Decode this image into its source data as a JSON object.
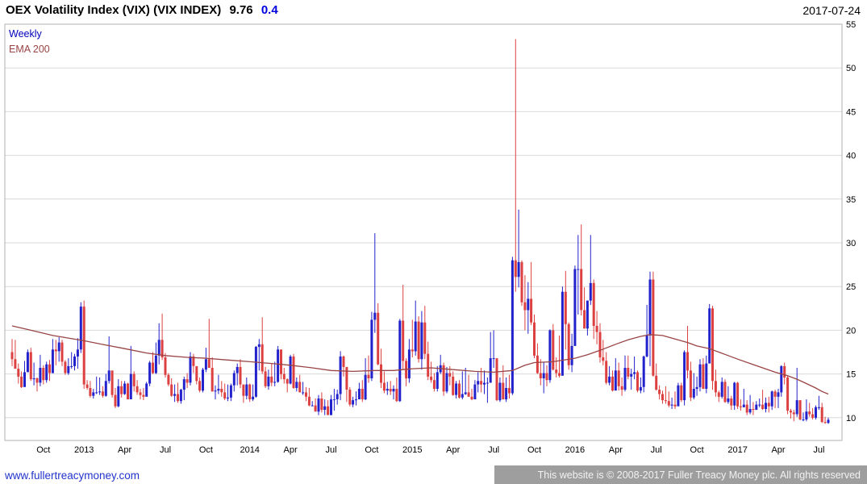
{
  "header": {
    "title": "OEX Volatility Index (VIX) (VIX INDEX)",
    "price": "9.76",
    "change": "0.4",
    "date": "2017-07-24"
  },
  "legend": {
    "timeframe": "Weekly",
    "overlay": "EMA 200"
  },
  "footer": {
    "link": "www.fullertreacymoney.com",
    "copyright": "This website is © 2008-2017 Fuller Treacy Money plc. All rights reserved"
  },
  "colors": {
    "up": "#2222cc",
    "down": "#dd4040",
    "ema": "#994444",
    "grid": "#d9d9d9",
    "border": "#b0b0b0",
    "axis_text": "#000000"
  },
  "chart_data": {
    "type": "candlestick",
    "title": "OEX Volatility Index (VIX) (VIX INDEX)",
    "timeframe": "Weekly",
    "overlay": "EMA 200",
    "last_price": 9.76,
    "change": 0.4,
    "as_of": "2017-07-24",
    "y_ticks": [
      10,
      15,
      20,
      25,
      30,
      35,
      40,
      45,
      50,
      55
    ],
    "y_range": [
      7.4,
      55.0
    ],
    "start_week": "2012-07-23",
    "x_ticks": [
      {
        "label": "Oct",
        "week": 10
      },
      {
        "label": "2013",
        "week": 23
      },
      {
        "label": "Apr",
        "week": 36
      },
      {
        "label": "Jul",
        "week": 49
      },
      {
        "label": "Oct",
        "week": 62
      },
      {
        "label": "2014",
        "week": 76
      },
      {
        "label": "Apr",
        "week": 89
      },
      {
        "label": "Jul",
        "week": 102
      },
      {
        "label": "Oct",
        "week": 115
      },
      {
        "label": "2015",
        "week": 128
      },
      {
        "label": "Apr",
        "week": 141
      },
      {
        "label": "Jul",
        "week": 154
      },
      {
        "label": "Oct",
        "week": 167
      },
      {
        "label": "2016",
        "week": 180
      },
      {
        "label": "Apr",
        "week": 193
      },
      {
        "label": "Jul",
        "week": 206
      },
      {
        "label": "Oct",
        "week": 219
      },
      {
        "label": "2017",
        "week": 232
      },
      {
        "label": "Apr",
        "week": 245
      },
      {
        "label": "Jul",
        "week": 258
      }
    ],
    "first_open": 17.5,
    "weeks_hlc": [
      [
        19.0,
        15.9,
        16.7
      ],
      [
        18.9,
        15.6,
        15.6
      ],
      [
        16.2,
        13.9,
        14.7
      ],
      [
        15.3,
        13.4,
        13.5
      ],
      [
        16.5,
        13.8,
        15.2
      ],
      [
        17.8,
        15.4,
        17.5
      ],
      [
        18.0,
        14.2,
        14.4
      ],
      [
        16.3,
        13.7,
        14.5
      ],
      [
        14.6,
        13.0,
        14.0
      ],
      [
        17.2,
        13.6,
        15.7
      ],
      [
        16.0,
        13.8,
        14.3
      ],
      [
        16.4,
        14.0,
        16.1
      ],
      [
        16.6,
        14.2,
        15.1
      ],
      [
        19.0,
        15.1,
        17.8
      ],
      [
        18.9,
        16.0,
        17.6
      ],
      [
        19.2,
        16.4,
        18.6
      ],
      [
        18.9,
        15.9,
        16.4
      ],
      [
        16.6,
        14.9,
        15.1
      ],
      [
        16.8,
        14.9,
        15.9
      ],
      [
        17.5,
        15.6,
        15.9
      ],
      [
        17.3,
        15.4,
        17.0
      ],
      [
        19.1,
        15.6,
        17.8
      ],
      [
        23.2,
        17.4,
        22.7
      ],
      [
        23.4,
        13.3,
        13.8
      ],
      [
        14.3,
        13.2,
        13.4
      ],
      [
        14.2,
        12.3,
        12.5
      ],
      [
        13.3,
        12.2,
        12.9
      ],
      [
        14.7,
        12.7,
        12.9
      ],
      [
        14.6,
        12.6,
        13.0
      ],
      [
        13.6,
        12.3,
        12.5
      ],
      [
        15.0,
        12.4,
        14.2
      ],
      [
        19.3,
        13.9,
        15.4
      ],
      [
        14.4,
        12.3,
        12.6
      ],
      [
        13.4,
        11.1,
        11.3
      ],
      [
        14.4,
        11.2,
        13.6
      ],
      [
        14.2,
        12.3,
        12.7
      ],
      [
        14.2,
        12.6,
        13.9
      ],
      [
        14.0,
        12.1,
        12.1
      ],
      [
        18.2,
        12.4,
        15.0
      ],
      [
        15.3,
        13.0,
        13.6
      ],
      [
        14.3,
        12.6,
        12.9
      ],
      [
        13.3,
        12.1,
        12.6
      ],
      [
        13.4,
        12.0,
        12.4
      ],
      [
        14.1,
        12.6,
        13.9
      ],
      [
        16.5,
        13.6,
        16.3
      ],
      [
        17.5,
        15.0,
        15.1
      ],
      [
        18.6,
        15.0,
        17.1
      ],
      [
        20.8,
        16.1,
        18.9
      ],
      [
        21.9,
        16.6,
        16.9
      ],
      [
        17.4,
        14.6,
        14.9
      ],
      [
        15.1,
        13.6,
        13.8
      ],
      [
        14.5,
        12.4,
        12.5
      ],
      [
        13.8,
        11.8,
        12.7
      ],
      [
        14.0,
        11.7,
        11.9
      ],
      [
        13.3,
        11.6,
        13.2
      ],
      [
        14.7,
        12.0,
        14.4
      ],
      [
        15.1,
        13.4,
        14.0
      ],
      [
        17.5,
        13.7,
        17.0
      ],
      [
        17.3,
        15.1,
        15.9
      ],
      [
        15.9,
        13.8,
        14.2
      ],
      [
        14.6,
        12.9,
        13.1
      ],
      [
        15.7,
        12.9,
        15.5
      ],
      [
        18.0,
        15.2,
        16.7
      ],
      [
        21.3,
        15.7,
        15.7
      ],
      [
        16.9,
        13.0,
        13.0
      ],
      [
        13.7,
        12.1,
        13.1
      ],
      [
        14.9,
        12.7,
        13.3
      ],
      [
        14.2,
        12.4,
        12.9
      ],
      [
        13.9,
        12.0,
        12.2
      ],
      [
        13.8,
        11.9,
        12.3
      ],
      [
        13.9,
        11.9,
        13.7
      ],
      [
        15.4,
        13.0,
        15.1
      ],
      [
        16.2,
        13.7,
        15.8
      ],
      [
        16.7,
        13.4,
        13.8
      ],
      [
        13.6,
        11.7,
        12.5
      ],
      [
        14.6,
        12.1,
        13.8
      ],
      [
        13.9,
        11.8,
        12.1
      ],
      [
        13.8,
        11.9,
        12.4
      ],
      [
        18.2,
        12.3,
        18.1
      ],
      [
        19.0,
        15.4,
        18.4
      ],
      [
        21.5,
        15.0,
        15.3
      ],
      [
        15.8,
        13.4,
        13.6
      ],
      [
        15.5,
        13.2,
        14.7
      ],
      [
        16.2,
        13.6,
        14.0
      ],
      [
        16.4,
        13.6,
        14.1
      ],
      [
        18.2,
        14.0,
        17.8
      ],
      [
        17.8,
        14.4,
        15.0
      ],
      [
        15.7,
        13.9,
        14.4
      ],
      [
        14.5,
        12.9,
        13.9
      ],
      [
        17.2,
        13.8,
        17.0
      ],
      [
        17.3,
        13.3,
        13.4
      ],
      [
        14.6,
        13.0,
        14.1
      ],
      [
        14.9,
        12.9,
        12.9
      ],
      [
        14.1,
        12.6,
        12.9
      ],
      [
        13.5,
        11.9,
        12.4
      ],
      [
        13.4,
        11.3,
        11.4
      ],
      [
        11.9,
        11.3,
        11.4
      ],
      [
        12.2,
        10.7,
        10.7
      ],
      [
        12.6,
        10.3,
        12.2
      ],
      [
        12.9,
        10.6,
        10.9
      ],
      [
        12.1,
        10.3,
        11.3
      ],
      [
        12.0,
        10.3,
        10.3
      ],
      [
        12.6,
        10.3,
        12.1
      ],
      [
        13.3,
        10.8,
        12.1
      ],
      [
        13.2,
        11.5,
        12.7
      ],
      [
        17.6,
        12.0,
        17.0
      ],
      [
        17.1,
        14.7,
        15.8
      ],
      [
        14.9,
        11.8,
        13.2
      ],
      [
        13.5,
        11.3,
        11.5
      ],
      [
        12.4,
        11.2,
        12.0
      ],
      [
        13.0,
        11.4,
        12.1
      ],
      [
        14.0,
        12.1,
        13.3
      ],
      [
        14.3,
        11.8,
        12.1
      ],
      [
        16.8,
        12.0,
        14.9
      ],
      [
        17.1,
        14.0,
        14.5
      ],
      [
        22.1,
        14.2,
        21.2
      ],
      [
        31.1,
        19.7,
        22.0
      ],
      [
        23.1,
        16.0,
        16.1
      ],
      [
        17.9,
        13.4,
        14.0
      ],
      [
        15.3,
        12.8,
        13.1
      ],
      [
        14.1,
        12.6,
        13.3
      ],
      [
        14.2,
        12.6,
        13.0
      ],
      [
        13.7,
        12.1,
        13.3
      ],
      [
        14.6,
        11.8,
        11.9
      ],
      [
        21.3,
        11.8,
        21.1
      ],
      [
        25.2,
        15.5,
        16.5
      ],
      [
        16.8,
        13.6,
        14.5
      ],
      [
        19.0,
        14.0,
        17.8
      ],
      [
        21.2,
        16.9,
        17.6
      ],
      [
        23.4,
        17.1,
        21.0
      ],
      [
        21.6,
        16.3,
        16.7
      ],
      [
        22.2,
        15.5,
        20.9
      ],
      [
        22.8,
        16.7,
        17.3
      ],
      [
        18.7,
        14.3,
        14.7
      ],
      [
        16.4,
        14.0,
        14.3
      ],
      [
        15.1,
        13.0,
        13.3
      ],
      [
        15.9,
        13.0,
        15.2
      ],
      [
        17.2,
        15.0,
        16.0
      ],
      [
        16.3,
        12.5,
        13.0
      ],
      [
        15.8,
        12.8,
        15.1
      ],
      [
        15.9,
        13.7,
        14.7
      ],
      [
        15.3,
        12.5,
        12.6
      ],
      [
        14.2,
        12.2,
        13.9
      ],
      [
        14.3,
        12.2,
        12.3
      ],
      [
        15.3,
        12.1,
        12.7
      ],
      [
        15.7,
        12.6,
        12.9
      ],
      [
        14.9,
        12.4,
        12.4
      ],
      [
        13.3,
        12.0,
        12.1
      ],
      [
        14.3,
        12.1,
        13.8
      ],
      [
        15.2,
        12.9,
        14.2
      ],
      [
        15.7,
        12.9,
        13.8
      ],
      [
        15.4,
        12.7,
        14.0
      ],
      [
        14.6,
        11.7,
        14.0
      ],
      [
        19.8,
        14.0,
        16.8
      ],
      [
        20.0,
        15.7,
        16.8
      ],
      [
        15.0,
        11.9,
        12.0
      ],
      [
        14.6,
        11.8,
        14.0
      ],
      [
        16.0,
        12.1,
        12.1
      ],
      [
        14.6,
        11.8,
        13.4
      ],
      [
        14.9,
        12.2,
        12.8
      ],
      [
        28.4,
        12.6,
        28.0
      ],
      [
        53.3,
        24.4,
        26.1
      ],
      [
        33.8,
        24.9,
        27.8
      ],
      [
        28.0,
        22.8,
        23.2
      ],
      [
        26.3,
        20.0,
        22.3
      ],
      [
        25.5,
        19.6,
        23.6
      ],
      [
        27.8,
        20.6,
        20.9
      ],
      [
        21.8,
        16.8,
        17.1
      ],
      [
        18.5,
        15.0,
        15.1
      ],
      [
        16.7,
        13.7,
        14.5
      ],
      [
        16.4,
        12.8,
        15.1
      ],
      [
        16.0,
        13.6,
        14.3
      ],
      [
        20.1,
        14.0,
        20.0
      ],
      [
        20.7,
        15.4,
        15.5
      ],
      [
        16.9,
        14.6,
        15.1
      ],
      [
        19.4,
        14.6,
        14.8
      ],
      [
        25.0,
        15.3,
        24.4
      ],
      [
        26.8,
        17.8,
        20.7
      ],
      [
        20.9,
        15.5,
        16.0
      ],
      [
        19.6,
        15.2,
        18.2
      ],
      [
        27.4,
        19.3,
        27.0
      ],
      [
        30.9,
        21.8,
        27.0
      ],
      [
        32.1,
        21.7,
        22.3
      ],
      [
        24.9,
        20.2,
        20.2
      ],
      [
        23.4,
        19.4,
        23.4
      ],
      [
        30.9,
        22.9,
        25.4
      ],
      [
        25.8,
        19.0,
        20.5
      ],
      [
        22.2,
        18.4,
        19.8
      ],
      [
        20.8,
        16.3,
        16.9
      ],
      [
        18.9,
        16.0,
        16.5
      ],
      [
        17.5,
        13.8,
        14.0
      ],
      [
        15.9,
        13.7,
        14.7
      ],
      [
        15.4,
        13.0,
        13.1
      ],
      [
        16.8,
        13.2,
        15.4
      ],
      [
        16.3,
        13.1,
        13.6
      ],
      [
        14.6,
        12.5,
        13.2
      ],
      [
        17.1,
        13.0,
        15.7
      ],
      [
        17.1,
        14.4,
        14.7
      ],
      [
        15.6,
        13.2,
        15.0
      ],
      [
        17.0,
        14.4,
        15.2
      ],
      [
        15.4,
        12.9,
        13.1
      ],
      [
        14.6,
        12.8,
        13.5
      ],
      [
        17.1,
        12.9,
        17.0
      ],
      [
        22.9,
        16.9,
        19.4
      ],
      [
        26.7,
        15.9,
        25.8
      ],
      [
        26.7,
        14.7,
        14.8
      ],
      [
        16.2,
        13.1,
        13.2
      ],
      [
        13.7,
        12.1,
        12.7
      ],
      [
        13.1,
        11.6,
        12.0
      ],
      [
        13.6,
        11.6,
        11.9
      ],
      [
        13.0,
        11.2,
        11.4
      ],
      [
        12.3,
        11.0,
        11.5
      ],
      [
        13.0,
        11.0,
        11.3
      ],
      [
        14.0,
        11.5,
        13.7
      ],
      [
        14.0,
        11.8,
        12.0
      ],
      [
        17.7,
        11.4,
        17.5
      ],
      [
        20.5,
        14.5,
        15.4
      ],
      [
        16.4,
        11.9,
        12.3
      ],
      [
        15.1,
        12.1,
        13.3
      ],
      [
        14.7,
        12.5,
        13.5
      ],
      [
        16.7,
        13.0,
        16.1
      ],
      [
        16.8,
        13.3,
        13.3
      ],
      [
        17.1,
        12.8,
        16.2
      ],
      [
        23.0,
        16.3,
        22.5
      ],
      [
        22.8,
        13.2,
        14.2
      ],
      [
        15.5,
        12.4,
        12.9
      ],
      [
        13.1,
        11.8,
        12.4
      ],
      [
        14.6,
        12.2,
        14.1
      ],
      [
        14.4,
        11.7,
        11.8
      ],
      [
        13.6,
        11.6,
        12.2
      ],
      [
        12.5,
        10.9,
        11.4
      ],
      [
        14.1,
        10.9,
        14.0
      ],
      [
        14.1,
        11.0,
        11.3
      ],
      [
        12.1,
        10.8,
        11.2
      ],
      [
        13.3,
        11.2,
        11.5
      ],
      [
        12.0,
        10.3,
        10.6
      ],
      [
        12.6,
        10.4,
        11.0
      ],
      [
        11.8,
        10.3,
        10.9
      ],
      [
        11.9,
        11.0,
        11.5
      ],
      [
        12.2,
        11.2,
        11.5
      ],
      [
        13.2,
        10.9,
        11.0
      ],
      [
        12.3,
        10.6,
        11.7
      ],
      [
        12.4,
        10.6,
        11.3
      ],
      [
        13.1,
        10.9,
        13.0
      ],
      [
        13.2,
        11.1,
        12.4
      ],
      [
        13.3,
        11.1,
        12.9
      ],
      [
        16.0,
        12.4,
        15.9
      ],
      [
        16.3,
        13.8,
        14.6
      ],
      [
        14.8,
        10.4,
        10.8
      ],
      [
        11.0,
        9.9,
        10.6
      ],
      [
        10.9,
        9.6,
        10.4
      ],
      [
        15.7,
        10.1,
        12.0
      ],
      [
        12.0,
        9.7,
        9.8
      ],
      [
        10.6,
        9.6,
        9.8
      ],
      [
        12.1,
        9.6,
        10.7
      ],
      [
        11.7,
        10.1,
        10.4
      ],
      [
        11.1,
        9.8,
        10.0
      ],
      [
        11.4,
        9.8,
        11.2
      ],
      [
        12.5,
        10.9,
        11.2
      ],
      [
        11.7,
        9.4,
        9.5
      ],
      [
        10.1,
        9.3,
        9.4
      ],
      [
        10.0,
        9.3,
        9.76
      ]
    ],
    "ema200": [
      [
        0,
        20.5
      ],
      [
        6,
        20.0
      ],
      [
        13,
        19.4
      ],
      [
        23,
        18.8
      ],
      [
        30,
        18.3
      ],
      [
        36,
        17.9
      ],
      [
        43,
        17.4
      ],
      [
        49,
        17.1
      ],
      [
        56,
        16.9
      ],
      [
        62,
        16.8
      ],
      [
        69,
        16.6
      ],
      [
        76,
        16.4
      ],
      [
        83,
        16.2
      ],
      [
        89,
        16.0
      ],
      [
        96,
        15.7
      ],
      [
        102,
        15.4
      ],
      [
        109,
        15.3
      ],
      [
        116,
        15.4
      ],
      [
        122,
        15.4
      ],
      [
        128,
        15.6
      ],
      [
        134,
        15.7
      ],
      [
        141,
        15.5
      ],
      [
        148,
        15.3
      ],
      [
        154,
        15.2
      ],
      [
        160,
        15.4
      ],
      [
        164,
        16.0
      ],
      [
        167,
        16.3
      ],
      [
        173,
        16.4
      ],
      [
        180,
        16.8
      ],
      [
        184,
        17.2
      ],
      [
        188,
        17.7
      ],
      [
        193,
        18.4
      ],
      [
        197,
        18.9
      ],
      [
        201,
        19.3
      ],
      [
        204,
        19.5
      ],
      [
        208,
        19.4
      ],
      [
        212,
        19.0
      ],
      [
        216,
        18.6
      ],
      [
        219,
        18.2
      ],
      [
        223,
        17.9
      ],
      [
        226,
        17.5
      ],
      [
        229,
        17.1
      ],
      [
        232,
        16.7
      ],
      [
        236,
        16.2
      ],
      [
        240,
        15.7
      ],
      [
        244,
        15.2
      ],
      [
        248,
        14.8
      ],
      [
        251,
        14.4
      ],
      [
        254,
        13.9
      ],
      [
        257,
        13.4
      ],
      [
        259,
        13.0
      ],
      [
        261,
        12.7
      ]
    ]
  }
}
